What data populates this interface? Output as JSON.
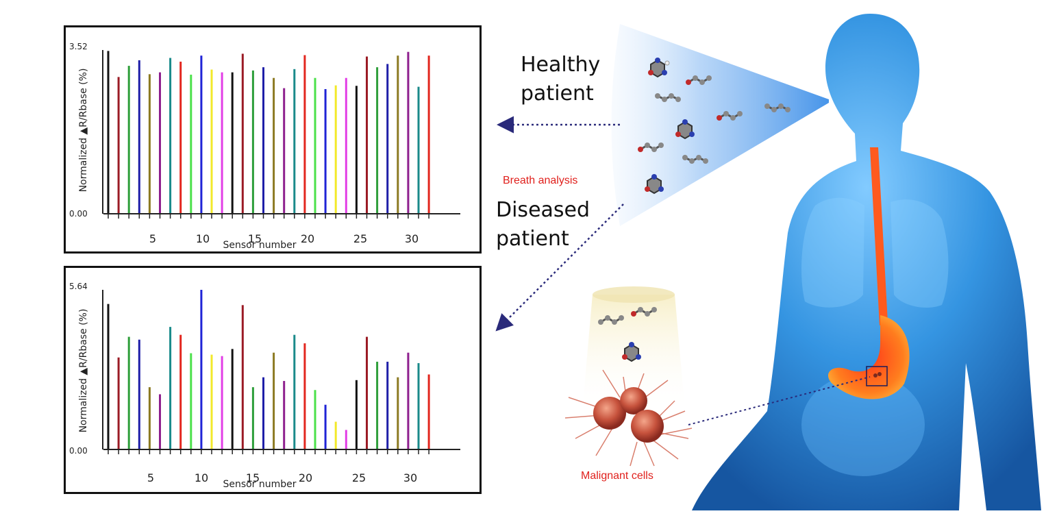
{
  "labels": {
    "healthy": "Healthy patient",
    "breath": "Breath analysis",
    "diseased": "Diseased patient",
    "malignant": "Malignant cells"
  },
  "colors": {
    "bar_palette": [
      "#111111",
      "#9b1b25",
      "#2e9e3a",
      "#1f1fa8",
      "#8c7a22",
      "#8e1f8e",
      "#1a8a8a",
      "#e2261e",
      "#4be04a",
      "#1f23d6",
      "#f2e92a",
      "#e23ee6",
      "#111111",
      "#9b1b25",
      "#2e9e3a",
      "#1f1fa8",
      "#8c7a22",
      "#8e1f8e",
      "#1a8a8a",
      "#e2261e",
      "#4be04a",
      "#1f23d6",
      "#f2e92a",
      "#e23ee6",
      "#111111",
      "#9b1b25",
      "#2e9e3a",
      "#1f1fa8",
      "#8c7a22",
      "#8e1f8e",
      "#1a8a8a",
      "#e2261e"
    ],
    "arrow": "#2a2a7a",
    "body": "#1f88d8",
    "organ": "#ff6a1a"
  },
  "chart_data": [
    {
      "type": "bar",
      "ylabel": "Normalized ▲R/Rbase (%)",
      "xlabel": "Sensor number",
      "ylim": [
        0,
        3.52
      ],
      "ytick_labels": [
        "0.00",
        "3.52"
      ],
      "xtick_labels": [
        "5",
        "10",
        "15",
        "20",
        "25",
        "30"
      ],
      "categories": [
        1,
        2,
        3,
        4,
        5,
        6,
        7,
        8,
        9,
        10,
        11,
        12,
        13,
        14,
        15,
        16,
        17,
        18,
        19,
        20,
        21,
        22,
        23,
        24,
        25,
        26,
        27,
        28,
        29,
        30,
        31,
        32
      ],
      "values": [
        3.5,
        2.94,
        3.18,
        3.3,
        3.0,
        3.04,
        3.35,
        3.27,
        2.99,
        3.4,
        3.1,
        3.04,
        3.04,
        3.44,
        3.08,
        3.15,
        2.92,
        2.7,
        3.11,
        3.41,
        2.92,
        2.68,
        2.76,
        2.92,
        2.75,
        3.38,
        3.15,
        3.22,
        3.4,
        3.48,
        2.73,
        3.4
      ]
    },
    {
      "type": "bar",
      "ylabel": "Normalized ▲R/Rbase (%)",
      "xlabel": "Sensor number",
      "ylim": [
        0,
        5.64
      ],
      "ytick_labels": [
        "0.00",
        "5.64"
      ],
      "xtick_labels": [
        "5",
        "10",
        "15",
        "20",
        "25",
        "30"
      ],
      "categories": [
        1,
        2,
        3,
        4,
        5,
        6,
        7,
        8,
        9,
        10,
        11,
        12,
        13,
        14,
        15,
        16,
        17,
        18,
        19,
        20,
        21,
        22,
        23,
        24,
        25,
        26,
        27,
        28,
        29,
        30,
        31,
        32
      ],
      "values": [
        5.14,
        3.25,
        3.98,
        3.88,
        2.2,
        1.95,
        4.33,
        4.05,
        3.4,
        5.64,
        3.35,
        3.3,
        3.55,
        5.1,
        2.2,
        2.55,
        3.42,
        2.42,
        4.05,
        3.75,
        2.1,
        1.58,
        0.98,
        0.69,
        2.45,
        3.98,
        3.1,
        3.1,
        2.55,
        3.42,
        3.05,
        2.65
      ]
    }
  ]
}
